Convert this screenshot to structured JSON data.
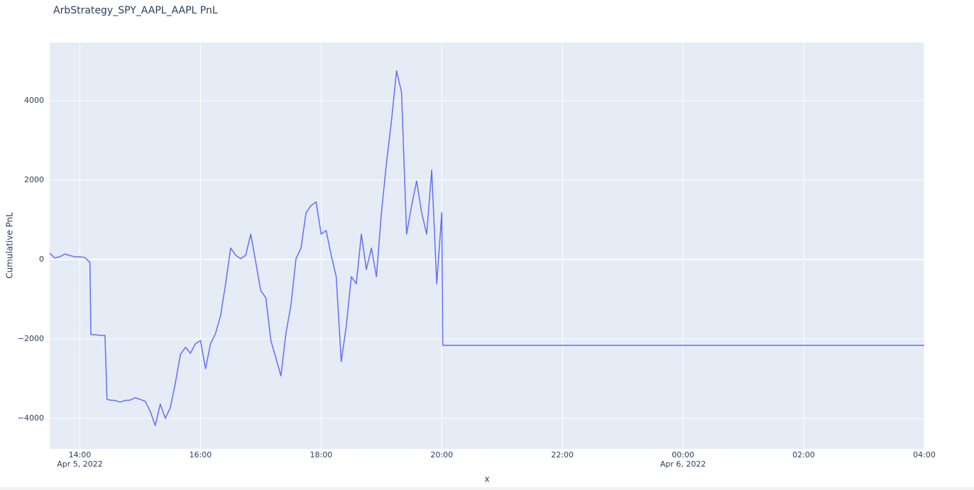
{
  "chart_data": {
    "type": "line",
    "title": "ArbStrategy_SPY_AAPL_AAPL PnL",
    "x_label": "x",
    "y_label": "Cumulative PnL",
    "x": [
      "2022-04-05 13:30",
      "2022-04-05 13:35",
      "2022-04-05 13:40",
      "2022-04-05 13:45",
      "2022-04-05 13:50",
      "2022-04-05 13:55",
      "2022-04-05 14:00",
      "2022-04-05 14:05",
      "2022-04-05 14:10",
      "2022-04-05 14:11",
      "2022-04-05 14:15",
      "2022-04-05 14:20",
      "2022-04-05 14:25",
      "2022-04-05 14:27",
      "2022-04-05 14:30",
      "2022-04-05 14:35",
      "2022-04-05 14:40",
      "2022-04-05 14:45",
      "2022-04-05 14:50",
      "2022-04-05 14:55",
      "2022-04-05 15:00",
      "2022-04-05 15:05",
      "2022-04-05 15:10",
      "2022-04-05 15:15",
      "2022-04-05 15:20",
      "2022-04-05 15:25",
      "2022-04-05 15:30",
      "2022-04-05 15:35",
      "2022-04-05 15:40",
      "2022-04-05 15:45",
      "2022-04-05 15:50",
      "2022-04-05 15:55",
      "2022-04-05 16:00",
      "2022-04-05 16:05",
      "2022-04-05 16:10",
      "2022-04-05 16:15",
      "2022-04-05 16:20",
      "2022-04-05 16:25",
      "2022-04-05 16:30",
      "2022-04-05 16:35",
      "2022-04-05 16:40",
      "2022-04-05 16:45",
      "2022-04-05 16:50",
      "2022-04-05 16:55",
      "2022-04-05 17:00",
      "2022-04-05 17:05",
      "2022-04-05 17:10",
      "2022-04-05 17:15",
      "2022-04-05 17:20",
      "2022-04-05 17:25",
      "2022-04-05 17:30",
      "2022-04-05 17:35",
      "2022-04-05 17:40",
      "2022-04-05 17:45",
      "2022-04-05 17:50",
      "2022-04-05 17:55",
      "2022-04-05 18:00",
      "2022-04-05 18:05",
      "2022-04-05 18:10",
      "2022-04-05 18:15",
      "2022-04-05 18:20",
      "2022-04-05 18:25",
      "2022-04-05 18:30",
      "2022-04-05 18:35",
      "2022-04-05 18:40",
      "2022-04-05 18:45",
      "2022-04-05 18:50",
      "2022-04-05 18:55",
      "2022-04-05 19:00",
      "2022-04-05 19:05",
      "2022-04-05 19:10",
      "2022-04-05 19:15",
      "2022-04-05 19:20",
      "2022-04-05 19:25",
      "2022-04-05 19:30",
      "2022-04-05 19:35",
      "2022-04-05 19:40",
      "2022-04-05 19:45",
      "2022-04-05 19:50",
      "2022-04-05 19:55",
      "2022-04-05 20:00",
      "2022-04-05 20:01",
      "2022-04-06 04:00"
    ],
    "series": [
      {
        "color": "#636efa",
        "values": [
          160,
          40,
          70,
          140,
          100,
          70,
          70,
          50,
          -70,
          -1890,
          -1890,
          -1910,
          -1910,
          -3520,
          -3540,
          -3550,
          -3590,
          -3550,
          -3540,
          -3480,
          -3520,
          -3570,
          -3820,
          -4180,
          -3640,
          -4000,
          -3730,
          -3110,
          -2390,
          -2210,
          -2360,
          -2120,
          -2040,
          -2750,
          -2120,
          -1860,
          -1410,
          -610,
          290,
          110,
          20,
          110,
          640,
          -70,
          -790,
          -960,
          -2040,
          -2480,
          -2930,
          -1860,
          -1140,
          20,
          290,
          1180,
          1360,
          1450,
          640,
          730,
          110,
          -430,
          -2570,
          -1680,
          -430,
          -610,
          640,
          -250,
          290,
          -430,
          1180,
          2430,
          3500,
          4750,
          4210,
          640,
          1360,
          1980,
          1180,
          640,
          2250,
          -610,
          1180,
          -2160,
          -2160
        ]
      }
    ],
    "xlim": [
      "2022-04-05 13:30",
      "2022-04-06 04:00"
    ],
    "xticks": [
      {
        "value": "2022-04-05 14:00",
        "label": "14:00",
        "date_label": "Apr 5, 2022"
      },
      {
        "value": "2022-04-05 16:00",
        "label": "16:00"
      },
      {
        "value": "2022-04-05 18:00",
        "label": "18:00"
      },
      {
        "value": "2022-04-05 20:00",
        "label": "20:00"
      },
      {
        "value": "2022-04-05 22:00",
        "label": "22:00"
      },
      {
        "value": "2022-04-06 00:00",
        "label": "00:00",
        "date_label": "Apr 6, 2022"
      },
      {
        "value": "2022-04-06 02:00",
        "label": "02:00"
      },
      {
        "value": "2022-04-06 04:00",
        "label": "04:00"
      }
    ],
    "ylim": [
      -4768,
      5464
    ],
    "yticks": [
      {
        "value": -4000,
        "label": "−4000"
      },
      {
        "value": -2000,
        "label": "−2000"
      },
      0,
      2000,
      4000
    ],
    "grid": true
  }
}
